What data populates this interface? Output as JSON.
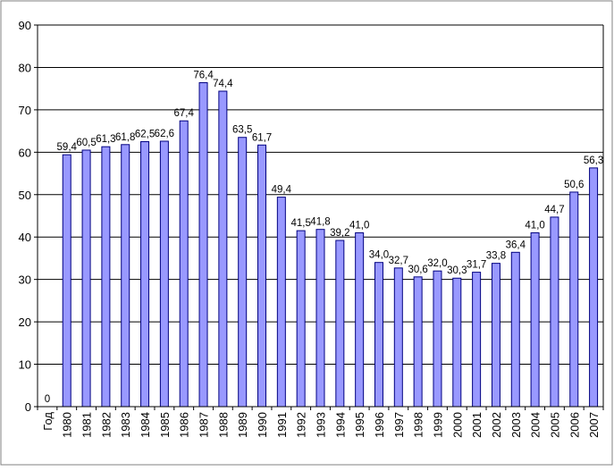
{
  "chart_data": {
    "type": "bar",
    "categories": [
      "Год",
      "1980",
      "1981",
      "1982",
      "1983",
      "1984",
      "1985",
      "1986",
      "1987",
      "1988",
      "1989",
      "1990",
      "1991",
      "1992",
      "1993",
      "1994",
      "1995",
      "1996",
      "1997",
      "1998",
      "1999",
      "2000",
      "2001",
      "2002",
      "2003",
      "2004",
      "2005",
      "2006",
      "2007"
    ],
    "values": [
      0,
      59.4,
      60.5,
      61.3,
      61.8,
      62.5,
      62.6,
      67.4,
      76.4,
      74.4,
      63.5,
      61.7,
      49.4,
      41.5,
      41.8,
      39.2,
      41.0,
      34.0,
      32.7,
      30.6,
      32.0,
      30.3,
      31.7,
      33.8,
      36.4,
      41.0,
      44.7,
      50.6,
      56.3
    ],
    "data_labels": [
      "0",
      "59,4",
      "60,5",
      "61,3",
      "61,8",
      "62,5",
      "62,6",
      "67,4",
      "76,4",
      "74,4",
      "63,5",
      "61,7",
      "49,4",
      "41,5",
      "41,8",
      "39,2",
      "41,0",
      "34,0",
      "32,7",
      "30,6",
      "32,0",
      "30,3",
      "31,7",
      "33,8",
      "36,4",
      "41,0",
      "44,7",
      "50,6",
      "56,3"
    ],
    "yticks": [
      "0",
      "10",
      "20",
      "30",
      "40",
      "50",
      "60",
      "70",
      "80",
      "90"
    ],
    "ylim": [
      0,
      90
    ],
    "grid": true,
    "legend": "none",
    "colors": {
      "bar_fill": "#9999ff",
      "bar_stroke": "#000080",
      "grid": "#000000",
      "frame": "#808080"
    }
  }
}
